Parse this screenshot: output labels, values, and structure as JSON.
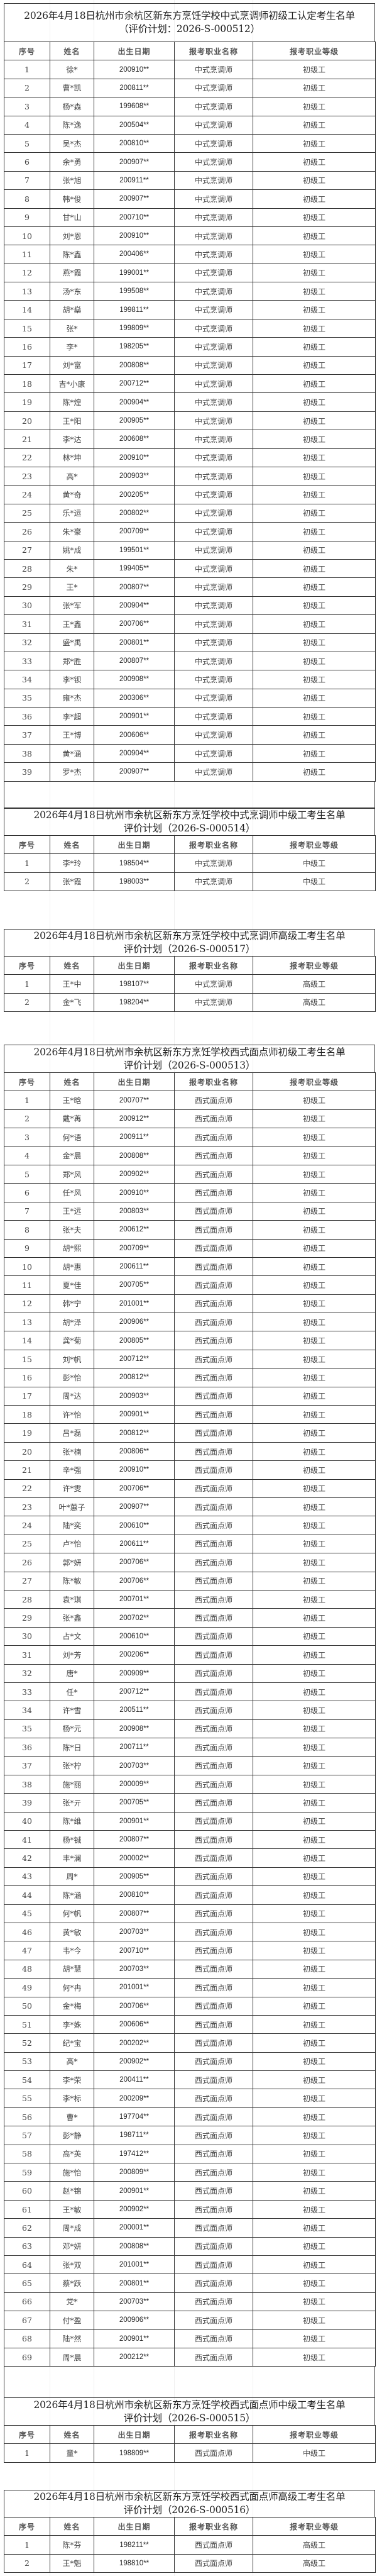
{
  "columns": [
    "序号",
    "姓名",
    "出生日期",
    "报考职业名称",
    "报考职业等级"
  ],
  "sections": [
    {
      "title_line1": "2026年4月18日杭州市余杭区新东方烹饪学校中式烹调师初级工认定考生名单",
      "title_line2": "（评价计划：2026-S-000512）",
      "rows": [
        [
          "1",
          "徐*",
          "200910**",
          "中式烹调师",
          "初级工"
        ],
        [
          "2",
          "曹*凯",
          "200811**",
          "中式烹调师",
          "初级工"
        ],
        [
          "3",
          "杨*森",
          "199608**",
          "中式烹调师",
          "初级工"
        ],
        [
          "4",
          "陈*逸",
          "200504**",
          "中式烹调师",
          "初级工"
        ],
        [
          "5",
          "吴*杰",
          "200810**",
          "中式烹调师",
          "初级工"
        ],
        [
          "6",
          "余*勇",
          "200907**",
          "中式烹调师",
          "初级工"
        ],
        [
          "7",
          "张*旭",
          "200911**",
          "中式烹调师",
          "初级工"
        ],
        [
          "8",
          "韩*俊",
          "200907**",
          "中式烹调师",
          "初级工"
        ],
        [
          "9",
          "甘*山",
          "200710**",
          "中式烹调师",
          "初级工"
        ],
        [
          "10",
          "刘*恩",
          "200910**",
          "中式烹调师",
          "初级工"
        ],
        [
          "11",
          "陈*鑫",
          "200406**",
          "中式烹调师",
          "初级工"
        ],
        [
          "12",
          "燕*霞",
          "199001**",
          "中式烹调师",
          "初级工"
        ],
        [
          "13",
          "汤*东",
          "199508**",
          "中式烹调师",
          "初级工"
        ],
        [
          "14",
          "胡*燊",
          "199811**",
          "中式烹调师",
          "初级工"
        ],
        [
          "15",
          "张*",
          "199809**",
          "中式烹调师",
          "初级工"
        ],
        [
          "16",
          "李*",
          "198205**",
          "中式烹调师",
          "初级工"
        ],
        [
          "17",
          "刘*富",
          "200808**",
          "中式烹调师",
          "初级工"
        ],
        [
          "18",
          "吉*小康",
          "200712**",
          "中式烹调师",
          "初级工"
        ],
        [
          "19",
          "陈*煌",
          "200904**",
          "中式烹调师",
          "初级工"
        ],
        [
          "20",
          "王*阳",
          "200905**",
          "中式烹调师",
          "初级工"
        ],
        [
          "21",
          "李*达",
          "200608**",
          "中式烹调师",
          "初级工"
        ],
        [
          "22",
          "林*坤",
          "200910**",
          "中式烹调师",
          "初级工"
        ],
        [
          "23",
          "高*",
          "200903**",
          "中式烹调师",
          "初级工"
        ],
        [
          "24",
          "黄*奇",
          "200205**",
          "中式烹调师",
          "初级工"
        ],
        [
          "25",
          "乐*运",
          "200802**",
          "中式烹调师",
          "初级工"
        ],
        [
          "26",
          "朱*豪",
          "200709**",
          "中式烹调师",
          "初级工"
        ],
        [
          "27",
          "姚*成",
          "199501**",
          "中式烹调师",
          "初级工"
        ],
        [
          "28",
          "朱*",
          "199405**",
          "中式烹调师",
          "初级工"
        ],
        [
          "29",
          "王*",
          "200807**",
          "中式烹调师",
          "初级工"
        ],
        [
          "30",
          "张*军",
          "200904**",
          "中式烹调师",
          "初级工"
        ],
        [
          "31",
          "王*鑫",
          "200706**",
          "中式烹调师",
          "初级工"
        ],
        [
          "32",
          "盛*禹",
          "200801**",
          "中式烹调师",
          "初级工"
        ],
        [
          "33",
          "郑*胜",
          "200807**",
          "中式烹调师",
          "初级工"
        ],
        [
          "34",
          "李*钡",
          "200908**",
          "中式烹调师",
          "初级工"
        ],
        [
          "35",
          "雍*杰",
          "200306**",
          "中式烹调师",
          "初级工"
        ],
        [
          "36",
          "李*超",
          "200901**",
          "中式烹调师",
          "初级工"
        ],
        [
          "37",
          "王*博",
          "200606**",
          "中式烹调师",
          "初级工"
        ],
        [
          "38",
          "黄*涵",
          "200904**",
          "中式烹调师",
          "初级工"
        ],
        [
          "39",
          "罗*杰",
          "200907**",
          "中式烹调师",
          "初级工"
        ]
      ]
    },
    {
      "title_line1": "2026年4月18日杭州市余杭区新东方烹饪学校中式烹调师中级工考生名单",
      "title_line2": "评价计划（2026-S-000514）",
      "rows": [
        [
          "1",
          "李*玲",
          "198504**",
          "中式烹调师",
          "中级工"
        ],
        [
          "2",
          "张*霞",
          "198003**",
          "中式烹调师",
          "中级工"
        ]
      ]
    },
    {
      "title_line1": "2026年4月18日杭州市余杭区新东方烹饪学校中式烹调师高级工考生名单",
      "title_line2": "评价计划（2026-S-000517）",
      "rows": [
        [
          "1",
          "王*中",
          "198107**",
          "中式烹调师",
          "高级工"
        ],
        [
          "2",
          "金*飞",
          "198204**",
          "中式烹调师",
          "高级工"
        ]
      ]
    },
    {
      "title_line1": "2026年4月18日杭州市余杭区新东方烹饪学校西式面点师初级工考生名单",
      "title_line2": "评价计划（2026-S-000513）",
      "rows": [
        [
          "1",
          "王*晗",
          "200707**",
          "西式面点师",
          "初级工"
        ],
        [
          "2",
          "戴*苒",
          "200912**",
          "西式面点师",
          "初级工"
        ],
        [
          "3",
          "何*语",
          "200911**",
          "西式面点师",
          "初级工"
        ],
        [
          "4",
          "金*晨",
          "200808**",
          "西式面点师",
          "初级工"
        ],
        [
          "5",
          "郑*风",
          "200902**",
          "西式面点师",
          "初级工"
        ],
        [
          "6",
          "任*风",
          "200910**",
          "西式面点师",
          "初级工"
        ],
        [
          "7",
          "王*远",
          "200803**",
          "西式面点师",
          "初级工"
        ],
        [
          "8",
          "张*夫",
          "200612**",
          "西式面点师",
          "初级工"
        ],
        [
          "9",
          "胡*熙",
          "200709**",
          "西式面点师",
          "初级工"
        ],
        [
          "10",
          "胡*惠",
          "200611**",
          "西式面点师",
          "初级工"
        ],
        [
          "11",
          "夏*佳",
          "200705**",
          "西式面点师",
          "初级工"
        ],
        [
          "12",
          "韩*宁",
          "201001**",
          "西式面点师",
          "初级工"
        ],
        [
          "13",
          "胡*泽",
          "200906**",
          "西式面点师",
          "初级工"
        ],
        [
          "14",
          "龚*菊",
          "200805**",
          "西式面点师",
          "初级工"
        ],
        [
          "15",
          "刘*帆",
          "200712**",
          "西式面点师",
          "初级工"
        ],
        [
          "16",
          "彭*怡",
          "200812**",
          "西式面点师",
          "初级工"
        ],
        [
          "17",
          "周*达",
          "200903**",
          "西式面点师",
          "初级工"
        ],
        [
          "18",
          "许*怡",
          "200901**",
          "西式面点师",
          "初级工"
        ],
        [
          "19",
          "吕*磊",
          "200812**",
          "西式面点师",
          "初级工"
        ],
        [
          "20",
          "张*楠",
          "200806**",
          "西式面点师",
          "初级工"
        ],
        [
          "21",
          "辛*强",
          "200910**",
          "西式面点师",
          "初级工"
        ],
        [
          "22",
          "许*雯",
          "200706**",
          "西式面点师",
          "初级工"
        ],
        [
          "23",
          "叶*蕙子",
          "200907**",
          "西式面点师",
          "初级工"
        ],
        [
          "24",
          "陆*奕",
          "200610**",
          "西式面点师",
          "初级工"
        ],
        [
          "25",
          "卢*怡",
          "200611**",
          "西式面点师",
          "初级工"
        ],
        [
          "26",
          "郭*妍",
          "200706**",
          "西式面点师",
          "初级工"
        ],
        [
          "27",
          "陈*敏",
          "200706**",
          "西式面点师",
          "初级工"
        ],
        [
          "28",
          "袁*琪",
          "200701**",
          "西式面点师",
          "初级工"
        ],
        [
          "29",
          "张*鑫",
          "200702**",
          "西式面点师",
          "初级工"
        ],
        [
          "30",
          "占*文",
          "200610**",
          "西式面点师",
          "初级工"
        ],
        [
          "31",
          "刘*芳",
          "200206**",
          "西式面点师",
          "初级工"
        ],
        [
          "32",
          "唐*",
          "200909**",
          "西式面点师",
          "初级工"
        ],
        [
          "33",
          "任*",
          "200712**",
          "西式面点师",
          "初级工"
        ],
        [
          "34",
          "许*雪",
          "200511**",
          "西式面点师",
          "初级工"
        ],
        [
          "35",
          "杨*元",
          "200908**",
          "西式面点师",
          "初级工"
        ],
        [
          "36",
          "陈*日",
          "200711**",
          "西式面点师",
          "初级工"
        ],
        [
          "37",
          "张*柠",
          "200703**",
          "西式面点师",
          "初级工"
        ],
        [
          "38",
          "施*丽",
          "200009**",
          "西式面点师",
          "初级工"
        ],
        [
          "39",
          "张*亓",
          "200705**",
          "西式面点师",
          "初级工"
        ],
        [
          "40",
          "陈*维",
          "200901**",
          "西式面点师",
          "初级工"
        ],
        [
          "41",
          "杨*铖",
          "200807**",
          "西式面点师",
          "初级工"
        ],
        [
          "42",
          "丰*澜",
          "200002**",
          "西式面点师",
          "初级工"
        ],
        [
          "43",
          "周*",
          "200905**",
          "西式面点师",
          "初级工"
        ],
        [
          "44",
          "陈*涵",
          "200810**",
          "西式面点师",
          "初级工"
        ],
        [
          "45",
          "何*帆",
          "200807**",
          "西式面点师",
          "初级工"
        ],
        [
          "46",
          "黄*敏",
          "200703**",
          "西式面点师",
          "初级工"
        ],
        [
          "47",
          "韦*今",
          "200710**",
          "西式面点师",
          "初级工"
        ],
        [
          "48",
          "胡*慧",
          "200703**",
          "西式面点师",
          "初级工"
        ],
        [
          "49",
          "何*冉",
          "201001**",
          "西式面点师",
          "初级工"
        ],
        [
          "50",
          "金*梅",
          "200706**",
          "西式面点师",
          "初级工"
        ],
        [
          "51",
          "李*姝",
          "200606**",
          "西式面点师",
          "初级工"
        ],
        [
          "52",
          "纪*宝",
          "200202**",
          "西式面点师",
          "初级工"
        ],
        [
          "53",
          "高*",
          "200902**",
          "西式面点师",
          "初级工"
        ],
        [
          "54",
          "李*荣",
          "200411**",
          "西式面点师",
          "初级工"
        ],
        [
          "55",
          "李*标",
          "200209**",
          "西式面点师",
          "初级工"
        ],
        [
          "56",
          "曹*",
          "197704**",
          "西式面点师",
          "初级工"
        ],
        [
          "57",
          "彭*静",
          "198711**",
          "西式面点师",
          "初级工"
        ],
        [
          "58",
          "高*英",
          "197412**",
          "西式面点师",
          "初级工"
        ],
        [
          "59",
          "施*怡",
          "200809**",
          "西式面点师",
          "初级工"
        ],
        [
          "60",
          "赵*锦",
          "200901**",
          "西式面点师",
          "初级工"
        ],
        [
          "61",
          "王*敏",
          "200902**",
          "西式面点师",
          "初级工"
        ],
        [
          "62",
          "周*成",
          "200001**",
          "西式面点师",
          "初级工"
        ],
        [
          "63",
          "邓*妍",
          "200808**",
          "西式面点师",
          "初级工"
        ],
        [
          "64",
          "张*双",
          "201001**",
          "西式面点师",
          "初级工"
        ],
        [
          "65",
          "蔡*跃",
          "200801**",
          "西式面点师",
          "初级工"
        ],
        [
          "66",
          "党*",
          "200703**",
          "西式面点师",
          "初级工"
        ],
        [
          "67",
          "付*盈",
          "200906**",
          "西式面点师",
          "初级工"
        ],
        [
          "68",
          "陆*然",
          "200901**",
          "西式面点师",
          "初级工"
        ],
        [
          "69",
          "周*晨",
          "200212**",
          "西式面点师",
          "初级工"
        ]
      ]
    },
    {
      "title_line1": "2026年4月18日杭州市余杭区新东方烹饪学校西式面点师中级工考生名单",
      "title_line2": "评价计划（2026-S-000515）",
      "rows": [
        [
          "1",
          "童*",
          "198809**",
          "西式面点师",
          "中级工"
        ]
      ]
    },
    {
      "title_line1": "2026年4月18日杭州市余杭区新东方烹饪学校西式面点师高级工考生名单",
      "title_line2": "评价计划（2026-S-000516）",
      "rows": [
        [
          "1",
          "陈*芬",
          "198211**",
          "西式面点师",
          "高级工"
        ],
        [
          "2",
          "王*魁",
          "198810**",
          "西式面点师",
          "高级工"
        ]
      ]
    }
  ]
}
